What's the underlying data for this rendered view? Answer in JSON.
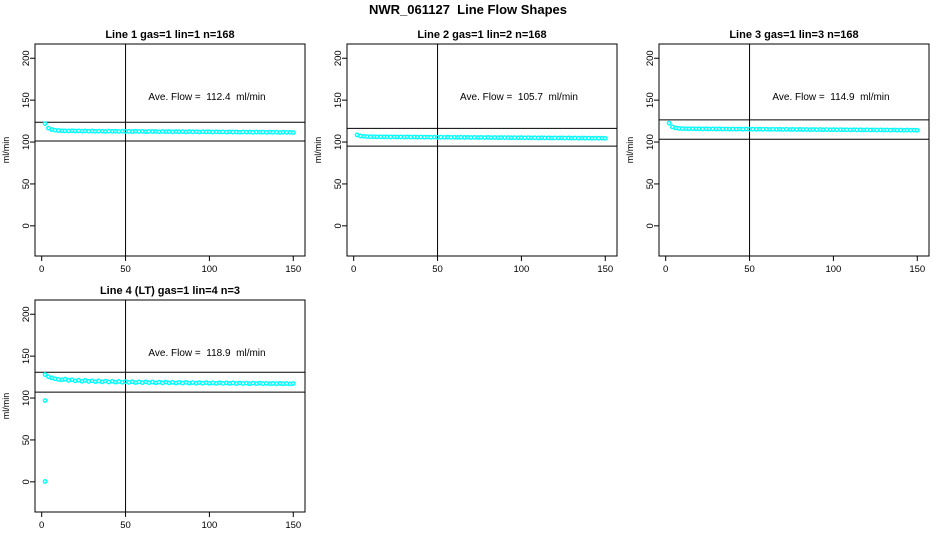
{
  "page_title": "NWR_061127  Line Flow Shapes",
  "colors": {
    "point": "#00FFFF",
    "axis": "#000000",
    "background": "#FFFFFF"
  },
  "chart_data": [
    {
      "type": "scatter",
      "title": "Line 1 gas=1 lin=1 n=168",
      "ave_flow": 112.4,
      "ave_flow_label": "Ave. Flow =  112.4  ml/min",
      "ylabel": "ml/min",
      "xlim": [
        -4,
        157
      ],
      "ylim": [
        -36,
        217
      ],
      "x_ticks": [
        0,
        50,
        100,
        150
      ],
      "y_ticks": [
        0,
        50,
        100,
        150,
        200
      ],
      "vline_x": 50,
      "ref_lines": {
        "upper": 123.6,
        "lower": 101.2
      },
      "points": [
        [
          2,
          122.0
        ],
        [
          4,
          116.6
        ],
        [
          6,
          114.9
        ],
        [
          8,
          114.1
        ],
        [
          10,
          113.7
        ],
        [
          12,
          113.5
        ],
        [
          14,
          113.3
        ],
        [
          16,
          113.2
        ],
        [
          18,
          113.4
        ],
        [
          20,
          113.1
        ],
        [
          22,
          113.3
        ],
        [
          24,
          113.0
        ],
        [
          26,
          113.2
        ],
        [
          28,
          112.9
        ],
        [
          30,
          113.1
        ],
        [
          32,
          112.8
        ],
        [
          34,
          113.0
        ],
        [
          36,
          112.9
        ],
        [
          38,
          112.7
        ],
        [
          40,
          113.0
        ],
        [
          42,
          112.8
        ],
        [
          44,
          112.9
        ],
        [
          46,
          112.6
        ],
        [
          48,
          112.9
        ],
        [
          50,
          112.7
        ],
        [
          52,
          112.8
        ],
        [
          54,
          112.5
        ],
        [
          56,
          112.8
        ],
        [
          58,
          112.6
        ],
        [
          60,
          112.7
        ],
        [
          62,
          112.4
        ],
        [
          64,
          112.7
        ],
        [
          66,
          112.5
        ],
        [
          68,
          112.6
        ],
        [
          70,
          112.3
        ],
        [
          72,
          112.6
        ],
        [
          74,
          112.4
        ],
        [
          76,
          112.5
        ],
        [
          78,
          112.2
        ],
        [
          80,
          112.5
        ],
        [
          82,
          112.3
        ],
        [
          84,
          112.4
        ],
        [
          86,
          112.1
        ],
        [
          88,
          112.4
        ],
        [
          90,
          112.2
        ],
        [
          92,
          112.3
        ],
        [
          94,
          112.0
        ],
        [
          96,
          112.3
        ],
        [
          98,
          112.1
        ],
        [
          100,
          112.2
        ],
        [
          102,
          111.9
        ],
        [
          104,
          112.2
        ],
        [
          106,
          112.0
        ],
        [
          108,
          112.1
        ],
        [
          110,
          111.8
        ],
        [
          112,
          112.1
        ],
        [
          114,
          111.9
        ],
        [
          116,
          112.0
        ],
        [
          118,
          111.7
        ],
        [
          120,
          112.0
        ],
        [
          122,
          111.8
        ],
        [
          124,
          111.9
        ],
        [
          126,
          111.6
        ],
        [
          128,
          111.9
        ],
        [
          130,
          111.7
        ],
        [
          132,
          111.8
        ],
        [
          134,
          111.5
        ],
        [
          136,
          111.8
        ],
        [
          138,
          111.6
        ],
        [
          140,
          111.7
        ],
        [
          142,
          111.4
        ],
        [
          144,
          111.7
        ],
        [
          146,
          111.5
        ],
        [
          148,
          111.6
        ],
        [
          150,
          111.3
        ]
      ]
    },
    {
      "type": "scatter",
      "title": "Line 2 gas=1 lin=2 n=168",
      "ave_flow": 105.7,
      "ave_flow_label": "Ave. Flow =  105.7  ml/min",
      "ylabel": "ml/min",
      "xlim": [
        -4,
        157
      ],
      "ylim": [
        -36,
        217
      ],
      "x_ticks": [
        0,
        50,
        100,
        150
      ],
      "y_ticks": [
        0,
        50,
        100,
        150,
        200
      ],
      "vline_x": 50,
      "ref_lines": {
        "upper": 116.3,
        "lower": 95.1
      },
      "points": [
        [
          2,
          108.5
        ],
        [
          4,
          107.2
        ],
        [
          6,
          106.8
        ],
        [
          8,
          106.5
        ],
        [
          10,
          106.4
        ],
        [
          12,
          106.3
        ],
        [
          14,
          106.2
        ],
        [
          16,
          106.3
        ],
        [
          18,
          106.1
        ],
        [
          20,
          106.2
        ],
        [
          22,
          106.0
        ],
        [
          24,
          106.2
        ],
        [
          26,
          106.0
        ],
        [
          28,
          106.1
        ],
        [
          30,
          105.9
        ],
        [
          32,
          106.1
        ],
        [
          34,
          105.9
        ],
        [
          36,
          106.0
        ],
        [
          38,
          105.8
        ],
        [
          40,
          106.0
        ],
        [
          42,
          105.8
        ],
        [
          44,
          105.9
        ],
        [
          46,
          105.7
        ],
        [
          48,
          105.9
        ],
        [
          50,
          105.7
        ],
        [
          52,
          105.8
        ],
        [
          54,
          105.6
        ],
        [
          56,
          105.8
        ],
        [
          58,
          105.6
        ],
        [
          60,
          105.7
        ],
        [
          62,
          105.5
        ],
        [
          64,
          105.7
        ],
        [
          66,
          105.5
        ],
        [
          68,
          105.6
        ],
        [
          70,
          105.4
        ],
        [
          72,
          105.6
        ],
        [
          74,
          105.4
        ],
        [
          76,
          105.5
        ],
        [
          78,
          105.3
        ],
        [
          80,
          105.5
        ],
        [
          82,
          105.3
        ],
        [
          84,
          105.4
        ],
        [
          86,
          105.2
        ],
        [
          88,
          105.4
        ],
        [
          90,
          105.2
        ],
        [
          92,
          105.3
        ],
        [
          94,
          105.1
        ],
        [
          96,
          105.3
        ],
        [
          98,
          105.1
        ],
        [
          100,
          105.2
        ],
        [
          102,
          105.0
        ],
        [
          104,
          105.2
        ],
        [
          106,
          105.0
        ],
        [
          108,
          105.1
        ],
        [
          110,
          104.9
        ],
        [
          112,
          105.1
        ],
        [
          114,
          104.9
        ],
        [
          116,
          105.0
        ],
        [
          118,
          104.8
        ],
        [
          120,
          105.0
        ],
        [
          122,
          104.8
        ],
        [
          124,
          104.9
        ],
        [
          126,
          104.7
        ],
        [
          128,
          104.9
        ],
        [
          130,
          104.7
        ],
        [
          132,
          104.8
        ],
        [
          134,
          104.6
        ],
        [
          136,
          104.8
        ],
        [
          138,
          104.6
        ],
        [
          140,
          104.7
        ],
        [
          142,
          104.5
        ],
        [
          144,
          104.7
        ],
        [
          146,
          104.5
        ],
        [
          148,
          104.6
        ],
        [
          150,
          104.4
        ]
      ]
    },
    {
      "type": "scatter",
      "title": "Line 3 gas=1 lin=3 n=168",
      "ave_flow": 114.9,
      "ave_flow_label": "Ave. Flow =  114.9  ml/min",
      "ylabel": "ml/min",
      "xlim": [
        -4,
        157
      ],
      "ylim": [
        -36,
        217
      ],
      "x_ticks": [
        0,
        50,
        100,
        150
      ],
      "y_ticks": [
        0,
        50,
        100,
        150,
        200
      ],
      "vline_x": 50,
      "ref_lines": {
        "upper": 126.4,
        "lower": 103.4
      },
      "points": [
        [
          2,
          122.5
        ],
        [
          4,
          118.0
        ],
        [
          6,
          116.8
        ],
        [
          8,
          116.3
        ],
        [
          10,
          116.0
        ],
        [
          12,
          115.9
        ],
        [
          14,
          115.8
        ],
        [
          16,
          115.9
        ],
        [
          18,
          115.7
        ],
        [
          20,
          115.8
        ],
        [
          22,
          115.6
        ],
        [
          24,
          115.8
        ],
        [
          26,
          115.6
        ],
        [
          28,
          115.7
        ],
        [
          30,
          115.5
        ],
        [
          32,
          115.7
        ],
        [
          34,
          115.5
        ],
        [
          36,
          115.6
        ],
        [
          38,
          115.4
        ],
        [
          40,
          115.6
        ],
        [
          42,
          115.4
        ],
        [
          44,
          115.5
        ],
        [
          46,
          115.3
        ],
        [
          48,
          115.5
        ],
        [
          50,
          115.3
        ],
        [
          52,
          115.4
        ],
        [
          54,
          115.2
        ],
        [
          56,
          115.4
        ],
        [
          58,
          115.2
        ],
        [
          60,
          115.3
        ],
        [
          62,
          115.1
        ],
        [
          64,
          115.3
        ],
        [
          66,
          115.1
        ],
        [
          68,
          115.2
        ],
        [
          70,
          115.0
        ],
        [
          72,
          115.2
        ],
        [
          74,
          115.0
        ],
        [
          76,
          115.1
        ],
        [
          78,
          114.9
        ],
        [
          80,
          115.1
        ],
        [
          82,
          114.9
        ],
        [
          84,
          115.0
        ],
        [
          86,
          114.8
        ],
        [
          88,
          115.0
        ],
        [
          90,
          114.8
        ],
        [
          92,
          114.9
        ],
        [
          94,
          114.7
        ],
        [
          96,
          114.9
        ],
        [
          98,
          114.7
        ],
        [
          100,
          114.8
        ],
        [
          102,
          114.6
        ],
        [
          104,
          114.8
        ],
        [
          106,
          114.6
        ],
        [
          108,
          114.7
        ],
        [
          110,
          114.5
        ],
        [
          112,
          114.7
        ],
        [
          114,
          114.5
        ],
        [
          116,
          114.6
        ],
        [
          118,
          114.4
        ],
        [
          120,
          114.6
        ],
        [
          122,
          114.4
        ],
        [
          124,
          114.5
        ],
        [
          126,
          114.3
        ],
        [
          128,
          114.5
        ],
        [
          130,
          114.3
        ],
        [
          132,
          114.4
        ],
        [
          134,
          114.2
        ],
        [
          136,
          114.4
        ],
        [
          138,
          114.2
        ],
        [
          140,
          114.3
        ],
        [
          142,
          114.1
        ],
        [
          144,
          114.3
        ],
        [
          146,
          114.1
        ],
        [
          148,
          114.2
        ],
        [
          150,
          114.0
        ]
      ]
    },
    {
      "type": "scatter",
      "title": "Line 4 (LT) gas=1 lin=4 n=3",
      "ave_flow": 118.9,
      "ave_flow_label": "Ave. Flow =  118.9  ml/min",
      "ylabel": "ml/min",
      "xlim": [
        -4,
        157
      ],
      "ylim": [
        -36,
        217
      ],
      "x_ticks": [
        0,
        50,
        100,
        150
      ],
      "y_ticks": [
        0,
        50,
        100,
        150,
        200
      ],
      "vline_x": 50,
      "ref_lines": {
        "upper": 130.8,
        "lower": 107.0
      },
      "points": [
        [
          2,
          97.0
        ],
        [
          2,
          0.5
        ],
        [
          2,
          128.0
        ],
        [
          4,
          125.5
        ],
        [
          6,
          124.0
        ],
        [
          8,
          123.0
        ],
        [
          10,
          122.2
        ],
        [
          12,
          121.8
        ],
        [
          14,
          122.5
        ],
        [
          16,
          121.0
        ],
        [
          18,
          121.8
        ],
        [
          20,
          120.5
        ],
        [
          22,
          121.3
        ],
        [
          24,
          120.0
        ],
        [
          26,
          121.0
        ],
        [
          28,
          119.8
        ],
        [
          30,
          120.6
        ],
        [
          32,
          119.5
        ],
        [
          34,
          120.4
        ],
        [
          36,
          119.3
        ],
        [
          38,
          120.2
        ],
        [
          40,
          119.1
        ],
        [
          42,
          120.0
        ],
        [
          44,
          119.0
        ],
        [
          46,
          119.8
        ],
        [
          48,
          118.8
        ],
        [
          50,
          119.6
        ],
        [
          52,
          118.7
        ],
        [
          54,
          119.5
        ],
        [
          56,
          118.5
        ],
        [
          58,
          119.3
        ],
        [
          60,
          118.4
        ],
        [
          62,
          119.2
        ],
        [
          64,
          118.3
        ],
        [
          66,
          119.1
        ],
        [
          68,
          118.2
        ],
        [
          70,
          119.0
        ],
        [
          72,
          118.1
        ],
        [
          74,
          118.9
        ],
        [
          76,
          118.0
        ],
        [
          78,
          118.8
        ],
        [
          80,
          117.9
        ],
        [
          82,
          118.7
        ],
        [
          84,
          117.8
        ],
        [
          86,
          118.6
        ],
        [
          88,
          117.8
        ],
        [
          90,
          118.5
        ],
        [
          92,
          117.7
        ],
        [
          94,
          118.4
        ],
        [
          96,
          117.6
        ],
        [
          98,
          118.3
        ],
        [
          100,
          117.6
        ],
        [
          102,
          118.2
        ],
        [
          104,
          117.5
        ],
        [
          106,
          118.2
        ],
        [
          108,
          117.4
        ],
        [
          110,
          118.1
        ],
        [
          112,
          117.4
        ],
        [
          114,
          118.0
        ],
        [
          116,
          117.3
        ],
        [
          118,
          117.9
        ],
        [
          120,
          117.3
        ],
        [
          122,
          117.8
        ],
        [
          124,
          117.2
        ],
        [
          126,
          117.8
        ],
        [
          128,
          117.2
        ],
        [
          130,
          117.7
        ],
        [
          132,
          117.1
        ],
        [
          134,
          117.6
        ],
        [
          136,
          117.1
        ],
        [
          138,
          117.5
        ],
        [
          140,
          117.0
        ],
        [
          142,
          117.5
        ],
        [
          144,
          117.0
        ],
        [
          146,
          117.4
        ],
        [
          148,
          116.9
        ],
        [
          150,
          117.3
        ]
      ]
    }
  ]
}
